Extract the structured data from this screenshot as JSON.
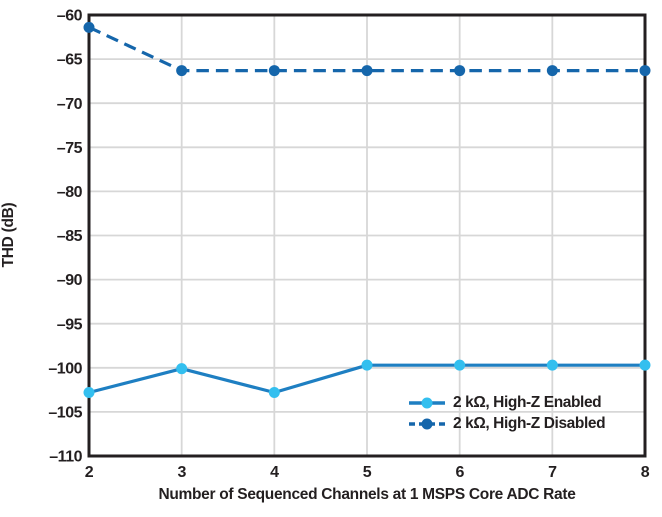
{
  "chart_data": {
    "type": "line",
    "title": "",
    "xlabel": "Number of Sequenced Channels at 1 MSPS Core ADC Rate",
    "ylabel": "THD (dB)",
    "xlim": [
      2,
      8
    ],
    "ylim": [
      -110,
      -60
    ],
    "xticks": [
      2,
      3,
      4,
      5,
      6,
      7,
      8
    ],
    "yticks": [
      -110,
      -105,
      -100,
      -95,
      -90,
      -85,
      -80,
      -75,
      -70,
      -65,
      -60
    ],
    "grid": true,
    "legend_position": "inside bottom-right",
    "x": [
      2,
      3,
      4,
      5,
      6,
      7,
      8
    ],
    "series": [
      {
        "name": "2 kΩ, High-Z Enabled",
        "values": [
          -102.8,
          -100.1,
          -102.8,
          -99.7,
          -99.7,
          -99.7,
          -99.7
        ],
        "line_color": "#1e7fc2",
        "marker_color": "#33bfef",
        "dash": null,
        "legend_dash": null
      },
      {
        "name": "2 kΩ, High-Z Disabled",
        "values": [
          -61.4,
          -66.3,
          -66.3,
          -66.3,
          -66.3,
          -66.3,
          -66.3
        ],
        "line_color": "#1566ab",
        "marker_color": "#1566ab",
        "dash": "12.5 7",
        "legend_dash": "6 4"
      }
    ],
    "colors": {
      "axis": "#231f20",
      "gridline": "#d7d7d7",
      "background": "#ffffff"
    }
  }
}
